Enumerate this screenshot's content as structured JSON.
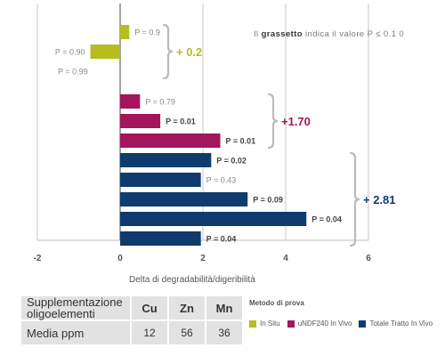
{
  "chart_data": {
    "type": "bar",
    "orientation": "horizontal",
    "xlabel": "Delta di degradabilità/digeribilità",
    "xlim": [
      -2,
      6
    ],
    "xticks": [
      -2,
      0,
      2,
      4,
      6
    ],
    "grid": true,
    "note": {
      "prefix": "Il ",
      "bold": "grassetto",
      "suffix": " indica il valore P ≤ 0.1 0"
    },
    "bars": [
      {
        "value": 0.22,
        "label": "P = 0.9",
        "group": 0,
        "bold": false
      },
      {
        "value": -0.72,
        "label": "P = 0.90",
        "group": 0,
        "bold": false
      },
      {
        "value": 0,
        "label": "P = 0.99",
        "group": 0,
        "bold": false
      },
      {
        "value": 0.48,
        "label": "P = 0.79",
        "group": 1,
        "bold": false
      },
      {
        "value": 0.97,
        "label": "P = 0.01",
        "group": 1,
        "bold": true
      },
      {
        "value": 2.42,
        "label": "P = 0.01",
        "group": 1,
        "bold": true
      },
      {
        "value": 2.2,
        "label": "P = 0.02",
        "group": 2,
        "bold": true
      },
      {
        "value": 1.95,
        "label": "P = 0.43",
        "group": 2,
        "bold": false
      },
      {
        "value": 3.08,
        "label": "P = 0.09",
        "group": 2,
        "bold": true
      },
      {
        "value": 4.5,
        "label": "P = 0.04",
        "group": 2,
        "bold": true
      },
      {
        "value": 1.95,
        "label": "P = 0.04",
        "group": 2,
        "bold": true
      }
    ],
    "groups": [
      {
        "total": "+ 0.2",
        "color": "#b5be1e"
      },
      {
        "total": "+1.70",
        "color": "#a3155c"
      },
      {
        "total": "+ 2.81",
        "color": "#0f3b6e"
      }
    ]
  },
  "table": {
    "header_label": "Supplementazione oligoelementi",
    "elements": [
      "Cu",
      "Zn",
      "Mn"
    ],
    "row_label": "Media ppm",
    "values": [
      "12",
      "56",
      "36"
    ]
  },
  "legend": {
    "title": "Metodo di prova",
    "items": [
      {
        "label": "In Situ",
        "color": "#b5be1e"
      },
      {
        "label": "uNDF240 In Vivo",
        "color": "#a3155c"
      },
      {
        "label": "Totale Tratto In Vivo",
        "color": "#0f3b6e"
      }
    ]
  }
}
